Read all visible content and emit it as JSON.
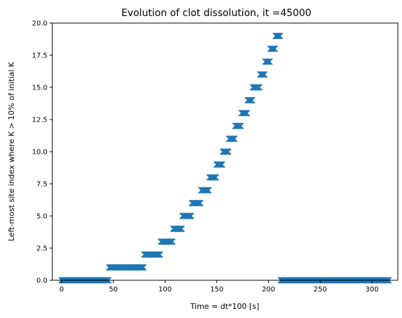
{
  "chart_data": {
    "type": "scatter",
    "title": "Evolution of clot dissolution, it =45000",
    "xlabel": "Time = dt*100 [s]",
    "ylabel": "Left-most site index where K > 10% of initial K",
    "xlim": [
      -9,
      325
    ],
    "ylim": [
      0,
      20
    ],
    "xticks": [
      0,
      50,
      100,
      150,
      200,
      250,
      300
    ],
    "yticks": [
      0,
      2.5,
      5,
      7.5,
      10,
      12.5,
      15,
      17.5,
      20
    ],
    "ytick_labels": [
      "0.0",
      "2.5",
      "5.0",
      "7.5",
      "10.0",
      "12.5",
      "15.0",
      "17.5",
      "20.0"
    ],
    "marker": "x",
    "marker_color": "#1f77b4",
    "grid": false,
    "legend": "none",
    "segments": [
      {
        "x_start": 0,
        "x_end": 45,
        "y": 0
      },
      {
        "x_start": 46,
        "x_end": 79,
        "y": 1
      },
      {
        "x_start": 80,
        "x_end": 95,
        "y": 2
      },
      {
        "x_start": 96,
        "x_end": 107,
        "y": 3
      },
      {
        "x_start": 108,
        "x_end": 116,
        "y": 4
      },
      {
        "x_start": 117,
        "x_end": 125,
        "y": 5
      },
      {
        "x_start": 126,
        "x_end": 134,
        "y": 6
      },
      {
        "x_start": 135,
        "x_end": 142,
        "y": 7
      },
      {
        "x_start": 143,
        "x_end": 149,
        "y": 8
      },
      {
        "x_start": 150,
        "x_end": 155,
        "y": 9
      },
      {
        "x_start": 156,
        "x_end": 161,
        "y": 10
      },
      {
        "x_start": 162,
        "x_end": 167,
        "y": 11
      },
      {
        "x_start": 168,
        "x_end": 173,
        "y": 12
      },
      {
        "x_start": 174,
        "x_end": 179,
        "y": 13
      },
      {
        "x_start": 180,
        "x_end": 184,
        "y": 14
      },
      {
        "x_start": 185,
        "x_end": 191,
        "y": 15
      },
      {
        "x_start": 192,
        "x_end": 196,
        "y": 16
      },
      {
        "x_start": 197,
        "x_end": 201,
        "y": 17
      },
      {
        "x_start": 202,
        "x_end": 206,
        "y": 18
      },
      {
        "x_start": 207,
        "x_end": 211,
        "y": 19
      },
      {
        "x_start": 212,
        "x_end": 316,
        "y": 0
      }
    ]
  }
}
